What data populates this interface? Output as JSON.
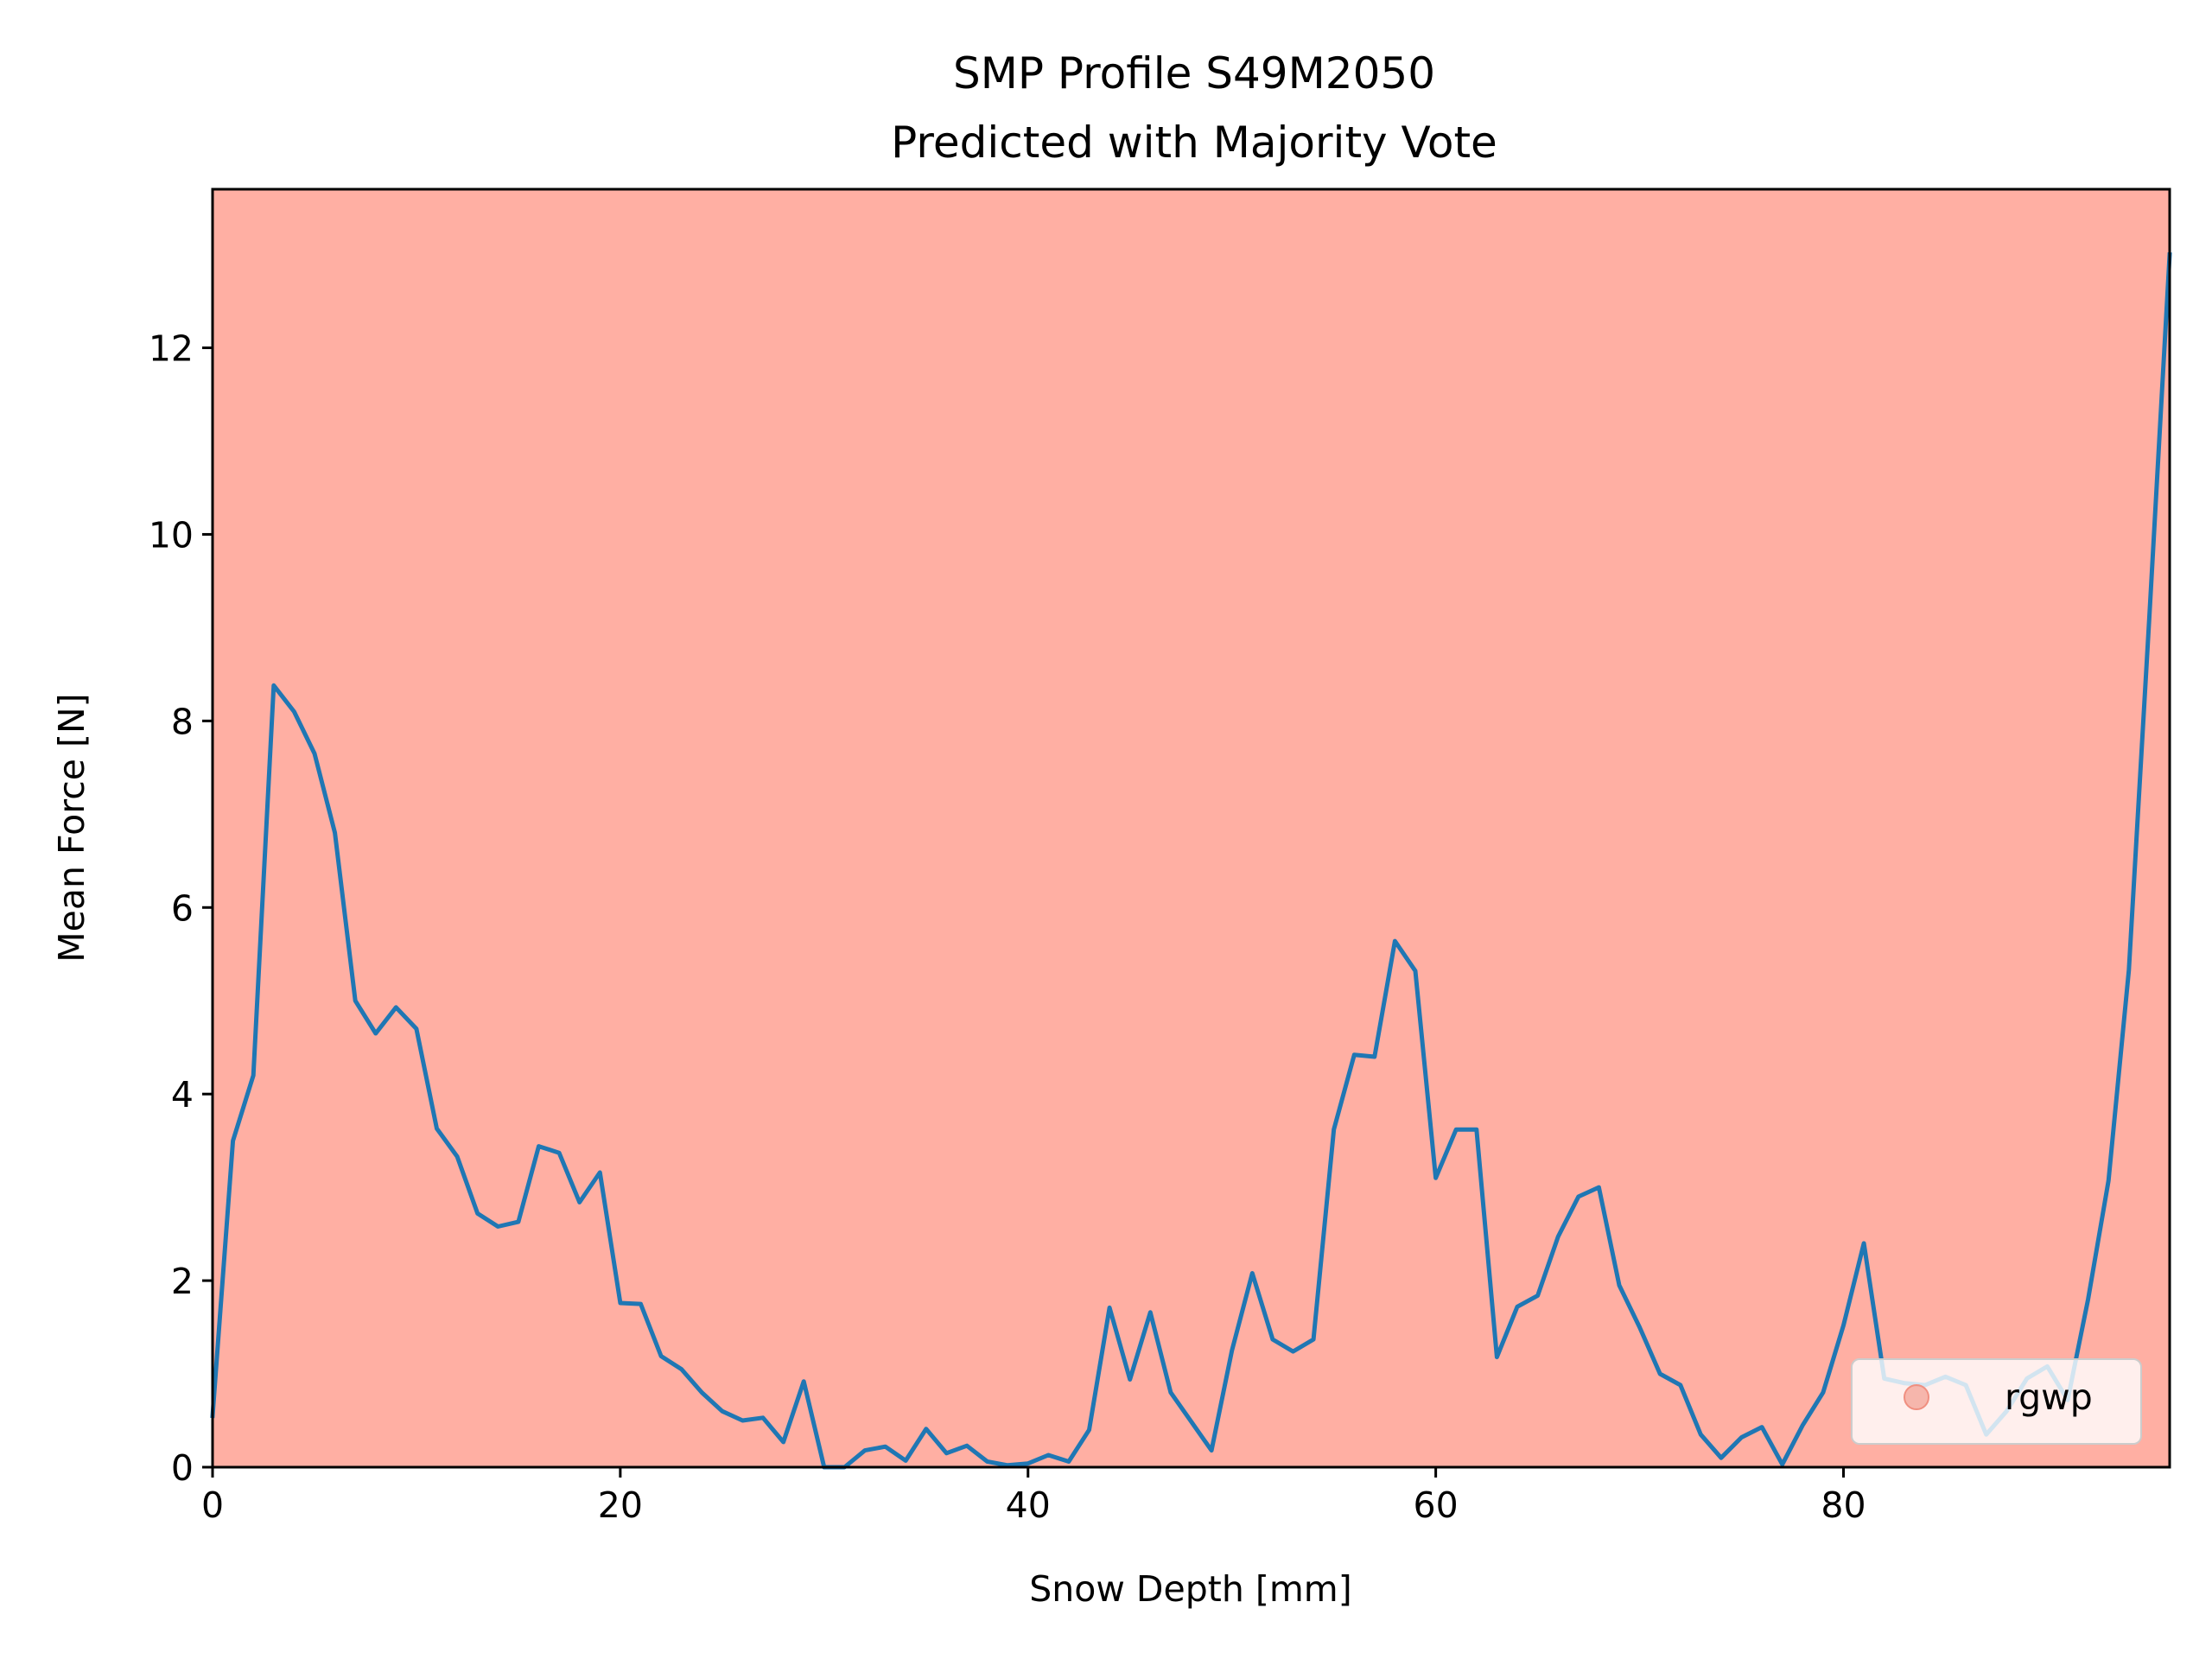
{
  "chart_data": {
    "type": "line",
    "title": "SMP Profile S49M2050",
    "subtitle": "Predicted with Majority Vote",
    "xlabel": "Snow Depth [mm]",
    "ylabel": "Mean Force [N]",
    "xlim": [
      0,
      96
    ],
    "ylim": [
      0,
      13.7
    ],
    "xticks": [
      0,
      20,
      40,
      60,
      80
    ],
    "yticks": [
      0,
      2,
      4,
      6,
      8,
      10,
      12
    ],
    "xtick_labels": [
      "0",
      "20",
      "40",
      "60",
      "80"
    ],
    "ytick_labels": [
      "0",
      "2",
      "4",
      "6",
      "8",
      "10",
      "12"
    ],
    "grid": false,
    "background_region": {
      "label": "rgwp",
      "x_range": [
        0,
        96
      ],
      "color": "#ffafa3"
    },
    "legend": {
      "placement": "lower right",
      "entries": [
        {
          "label": "rgwp",
          "marker": "circle",
          "color": "#f08f80"
        }
      ]
    },
    "series": [
      {
        "color": "#1f77b4",
        "x": [
          0,
          1,
          2,
          3,
          4,
          5,
          6,
          7,
          8,
          9,
          10,
          11,
          12,
          13,
          14,
          15,
          16,
          17,
          18,
          19,
          20,
          21,
          22,
          23,
          24,
          25,
          26,
          27,
          28,
          29,
          30,
          31,
          32,
          33,
          34,
          35,
          36,
          37,
          38,
          39,
          40,
          41,
          42,
          43,
          44,
          45,
          46,
          47,
          48,
          49,
          50,
          51,
          52,
          53,
          54,
          55,
          56,
          57,
          58,
          59,
          60,
          61,
          62,
          63,
          64,
          65,
          66,
          67,
          68,
          69,
          70,
          71,
          72,
          73,
          74,
          75,
          76,
          77,
          78,
          79,
          80,
          81,
          82,
          83,
          84,
          85,
          86,
          87,
          88,
          89,
          90,
          91,
          92,
          93,
          94,
          95,
          96
        ],
        "y": [
          0.55,
          3.5,
          4.2,
          8.38,
          8.1,
          7.65,
          6.8,
          5.0,
          4.65,
          4.93,
          4.7,
          3.63,
          3.33,
          2.72,
          2.58,
          2.63,
          3.44,
          3.37,
          2.84,
          3.16,
          1.76,
          1.75,
          1.19,
          1.05,
          0.8,
          0.6,
          0.5,
          0.53,
          0.27,
          0.92,
          0.0,
          0.0,
          0.18,
          0.22,
          0.07,
          0.41,
          0.15,
          0.23,
          0.06,
          0.02,
          0.04,
          0.13,
          0.06,
          0.4,
          1.71,
          0.94,
          1.66,
          0.8,
          0.49,
          0.18,
          1.25,
          2.08,
          1.37,
          1.24,
          1.37,
          3.62,
          4.42,
          4.4,
          5.64,
          5.32,
          3.1,
          3.62,
          3.62,
          1.18,
          1.72,
          1.84,
          2.47,
          2.9,
          3.0,
          1.95,
          1.5,
          1.0,
          0.88,
          0.35,
          0.1,
          0.32,
          0.43,
          0.03,
          0.45,
          0.8,
          1.52,
          2.4,
          0.95,
          0.9,
          0.88,
          0.97,
          0.88,
          0.35,
          0.6,
          0.95,
          1.08,
          0.72,
          1.8,
          3.07,
          5.33,
          9.1,
          13.0
        ]
      }
    ]
  }
}
